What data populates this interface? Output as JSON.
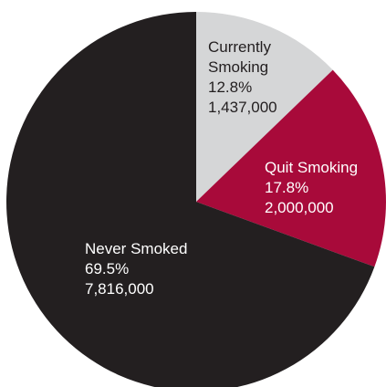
{
  "chart_data": {
    "type": "pie",
    "slices": [
      {
        "key": "currently",
        "label_lines": [
          "Currently",
          "Smoking"
        ],
        "percent_label": "12.8%",
        "count_label": "1,437,000",
        "percent": 12.8,
        "count": 1437000,
        "color": "#d5d6d7",
        "text_color": "#231f20"
      },
      {
        "key": "quit",
        "label_lines": [
          "Quit Smoking"
        ],
        "percent_label": "17.8%",
        "count_label": "2,000,000",
        "percent": 17.8,
        "count": 2000000,
        "color": "#a80a3a",
        "text_color": "#ffffff"
      },
      {
        "key": "never",
        "label_lines": [
          "Never Smoked"
        ],
        "percent_label": "69.5%",
        "count_label": "7,816,000",
        "percent": 69.5,
        "count": 7816000,
        "color": "#231f20",
        "text_color": "#ffffff"
      }
    ]
  }
}
